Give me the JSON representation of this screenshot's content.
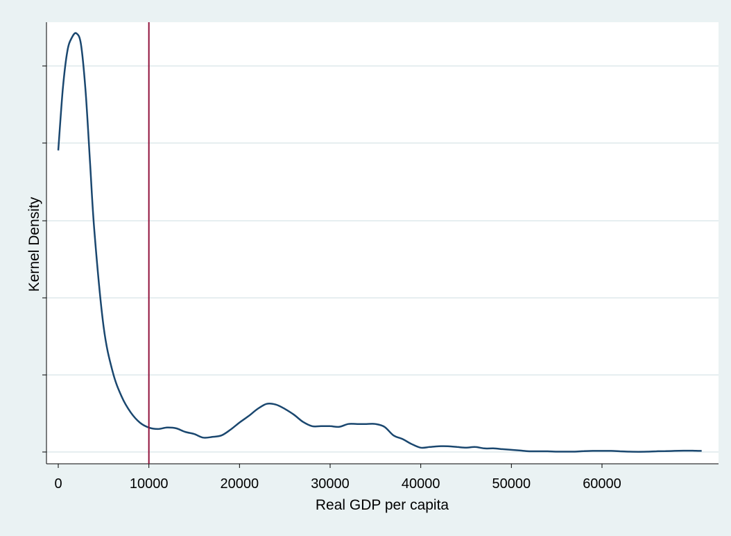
{
  "chart_data": {
    "type": "line",
    "title": "",
    "xlabel": "Real GDP per capita",
    "ylabel": "Kernel Density",
    "xlim": [
      -1500,
      71500
    ],
    "x_ticks": [
      0,
      10000,
      20000,
      30000,
      40000,
      50000,
      60000
    ],
    "x_tick_labels": [
      "0",
      "10000",
      "20000",
      "30000",
      "40000",
      "50000",
      "60000"
    ],
    "y_tick_labels": [],
    "grid": "horizontal",
    "colors": {
      "background": "#eaf2f3",
      "plot_area": "#ffffff",
      "gridline": "#e6eef0",
      "series": "#1a476f",
      "reference_line": "#90103a"
    },
    "reference_line": {
      "x": 10000
    },
    "series": [
      {
        "points": [
          [
            0,
            4.2e-05
          ],
          [
            500,
            5.05e-05
          ],
          [
            1000,
            5.58e-05
          ],
          [
            1500,
            5.77e-05
          ],
          [
            2000,
            5.83e-05
          ],
          [
            2500,
            5.68e-05
          ],
          [
            3000,
            5.05e-05
          ],
          [
            3500,
            4.05e-05
          ],
          [
            4000,
            3.05e-05
          ],
          [
            5000,
            1.75e-05
          ],
          [
            6000,
            1.12e-05
          ],
          [
            7000,
            7.7e-06
          ],
          [
            8000,
            5.5e-06
          ],
          [
            9000,
            4.1e-06
          ],
          [
            10000,
            3.4e-06
          ],
          [
            11000,
            3.2e-06
          ],
          [
            12000,
            3.4e-06
          ],
          [
            13000,
            3.3e-06
          ],
          [
            14000,
            2.8e-06
          ],
          [
            15000,
            2.5e-06
          ],
          [
            16000,
            2e-06
          ],
          [
            17000,
            2.1e-06
          ],
          [
            18000,
            2.3e-06
          ],
          [
            19000,
            3.1e-06
          ],
          [
            20000,
            4.1e-06
          ],
          [
            21000,
            5e-06
          ],
          [
            22000,
            6e-06
          ],
          [
            23000,
            6.7e-06
          ],
          [
            24000,
            6.6e-06
          ],
          [
            25000,
            6e-06
          ],
          [
            26000,
            5.2e-06
          ],
          [
            27000,
            4.2e-06
          ],
          [
            28000,
            3.6e-06
          ],
          [
            29000,
            3.6e-06
          ],
          [
            30000,
            3.6e-06
          ],
          [
            31000,
            3.5e-06
          ],
          [
            32000,
            3.9e-06
          ],
          [
            33000,
            3.9e-06
          ],
          [
            34000,
            3.9e-06
          ],
          [
            35000,
            3.9e-06
          ],
          [
            36000,
            3.5e-06
          ],
          [
            37000,
            2.3e-06
          ],
          [
            38000,
            1.8e-06
          ],
          [
            39000,
            1.1e-06
          ],
          [
            40000,
            6e-07
          ],
          [
            41000,
            7e-07
          ],
          [
            42000,
            8e-07
          ],
          [
            43000,
            8e-07
          ],
          [
            44000,
            7e-07
          ],
          [
            45000,
            6e-07
          ],
          [
            46000,
            7e-07
          ],
          [
            47000,
            5e-07
          ],
          [
            48000,
            5e-07
          ],
          [
            49000,
            4e-07
          ],
          [
            50000,
            3e-07
          ],
          [
            51000,
            2e-07
          ],
          [
            52000,
            1e-07
          ],
          [
            53000,
            1e-07
          ],
          [
            54000,
            1e-07
          ],
          [
            55000,
            5e-08
          ],
          [
            56000,
            5e-08
          ],
          [
            57000,
            5e-08
          ],
          [
            58000,
            1.2e-07
          ],
          [
            59000,
            1.5e-07
          ],
          [
            60000,
            1.5e-07
          ],
          [
            61000,
            1.5e-07
          ],
          [
            62000,
            1e-07
          ],
          [
            63000,
            5e-08
          ],
          [
            64000,
            3e-08
          ],
          [
            65000,
            5e-08
          ],
          [
            66000,
            1e-07
          ],
          [
            67000,
            1.2e-07
          ],
          [
            68000,
            1.5e-07
          ],
          [
            69000,
            1.8e-07
          ],
          [
            70000,
            1.8e-07
          ],
          [
            71000,
            1.5e-07
          ]
        ]
      }
    ]
  }
}
